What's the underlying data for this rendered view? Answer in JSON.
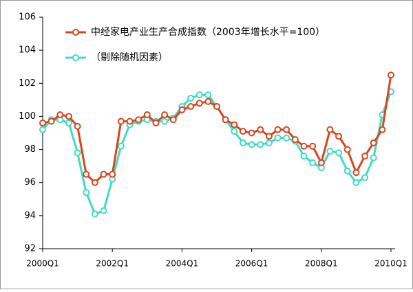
{
  "chart_data": {
    "type": "line",
    "categories": [
      "2000Q1",
      null,
      null,
      null,
      null,
      null,
      null,
      null,
      "2002Q1",
      null,
      null,
      null,
      null,
      null,
      null,
      null,
      "2004Q1",
      null,
      null,
      null,
      null,
      null,
      null,
      null,
      "2006Q1",
      null,
      null,
      null,
      null,
      null,
      null,
      null,
      "2008Q1",
      null,
      null,
      null,
      null,
      null,
      null,
      null,
      "2010Q1"
    ],
    "series": [
      {
        "name": "中经家电产业生产合成指数（2003年增长水平=100）",
        "color": "#d9441c",
        "values": [
          99.6,
          99.7,
          100.1,
          100.0,
          99.4,
          96.5,
          96.0,
          96.5,
          96.5,
          99.7,
          99.7,
          99.8,
          100.1,
          99.6,
          100.1,
          99.8,
          100.4,
          100.6,
          100.8,
          100.9,
          100.6,
          99.8,
          99.5,
          99.1,
          99.0,
          99.2,
          98.8,
          99.2,
          99.2,
          98.6,
          98.2,
          98.2,
          97.2,
          99.2,
          98.8,
          98.0,
          96.6,
          97.6,
          98.4,
          99.2,
          102.5
        ]
      },
      {
        "name": "（剔除随机因素）",
        "color": "#3ddcc4",
        "values": [
          99.2,
          99.8,
          99.8,
          99.6,
          97.8,
          95.4,
          94.1,
          94.3,
          96.2,
          98.2,
          99.5,
          99.7,
          99.8,
          99.7,
          99.7,
          99.9,
          100.6,
          101.1,
          101.3,
          101.3,
          100.6,
          99.8,
          99.1,
          98.4,
          98.3,
          98.3,
          98.4,
          98.7,
          98.7,
          98.5,
          97.6,
          97.2,
          96.9,
          97.9,
          97.8,
          96.7,
          96.0,
          96.3,
          97.5,
          100.1,
          101.5
        ]
      }
    ],
    "ylim": [
      92,
      106
    ],
    "yticks": [
      92,
      94,
      96,
      98,
      100,
      102,
      104,
      106
    ]
  }
}
